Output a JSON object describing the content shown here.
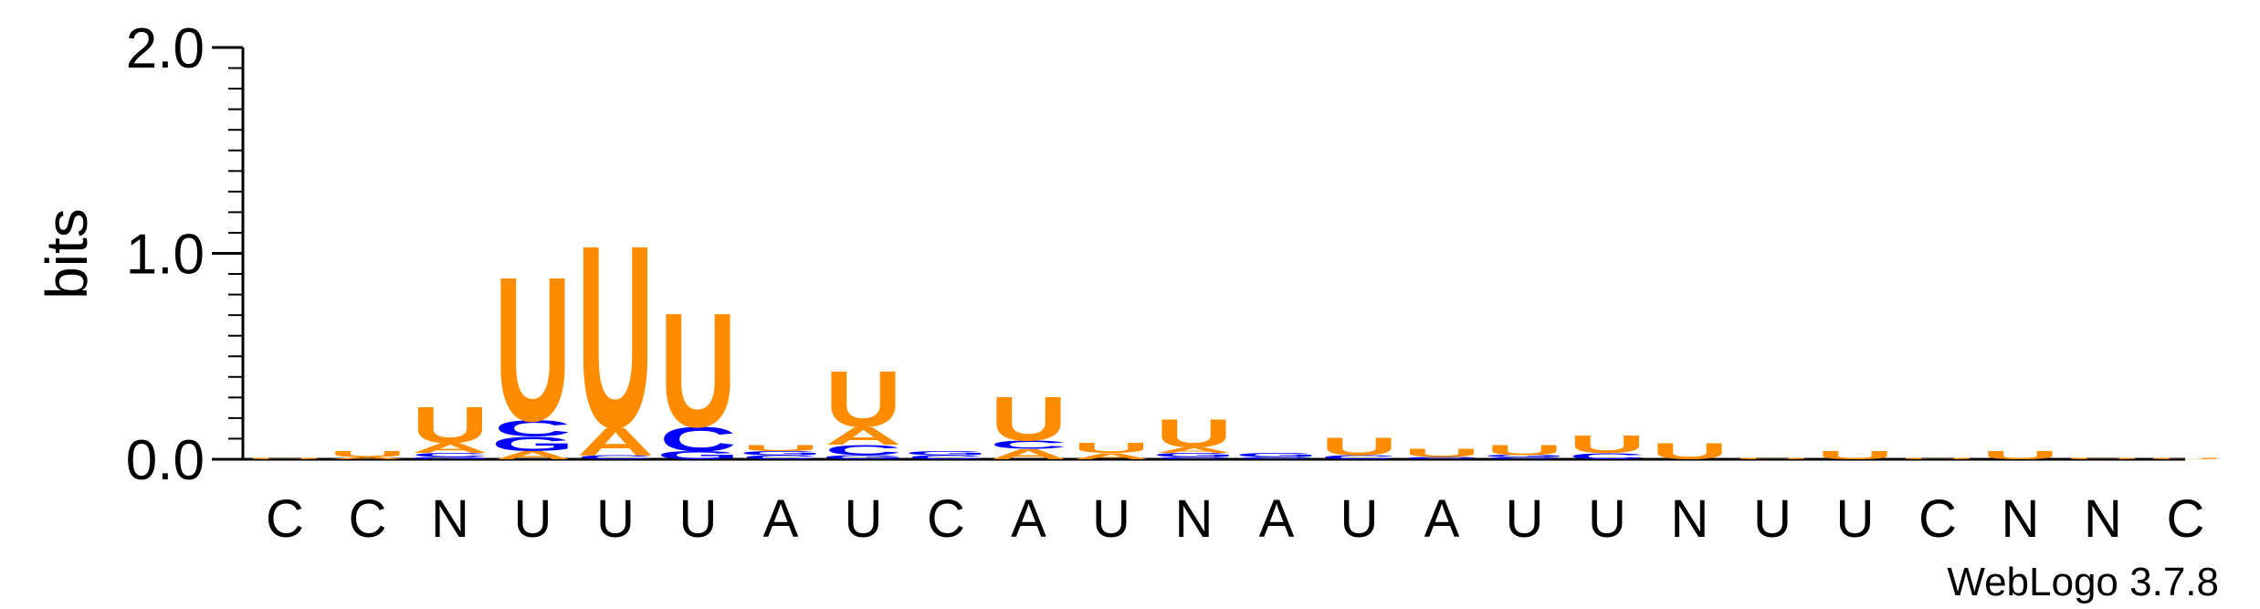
{
  "chart_data": {
    "type": "sequence-logo",
    "ylabel": "bits",
    "ylim": [
      0,
      2.0
    ],
    "yticks": [
      "0.0",
      "1.0",
      "2.0"
    ],
    "yticks_values": [
      0,
      1,
      2
    ],
    "xtick_labels": [
      "C",
      "C",
      "N",
      "U",
      "U",
      "U",
      "A",
      "U",
      "C",
      "A",
      "U",
      "N",
      "A",
      "U",
      "A",
      "U",
      "U",
      "N",
      "U",
      "U",
      "C",
      "N",
      "N",
      "C"
    ],
    "colors": {
      "U": "#ff8c00",
      "A": "#ff8c00",
      "C": "#0000ff",
      "G": "#0000ff"
    },
    "stacks": [
      [
        [
          "U",
          0.005
        ]
      ],
      [
        [
          "A",
          0.01
        ],
        [
          "U",
          0.03
        ]
      ],
      [
        [
          "G",
          0.01
        ],
        [
          "C",
          0.02
        ],
        [
          "A",
          0.05
        ],
        [
          "U",
          0.18
        ]
      ],
      [
        [
          "A",
          0.04
        ],
        [
          "G",
          0.07
        ],
        [
          "C",
          0.08
        ],
        [
          "U",
          0.72
        ]
      ],
      [
        [
          "C",
          0.02
        ],
        [
          "A",
          0.14
        ],
        [
          "U",
          0.91
        ]
      ],
      [
        [
          "G",
          0.04
        ],
        [
          "C",
          0.12
        ],
        [
          "U",
          0.57
        ]
      ],
      [
        [
          "C",
          0.02
        ],
        [
          "G",
          0.02
        ],
        [
          "U",
          0.03
        ]
      ],
      [
        [
          "G",
          0.02
        ],
        [
          "C",
          0.05
        ],
        [
          "A",
          0.09
        ],
        [
          "U",
          0.28
        ]
      ],
      [
        [
          "C",
          0.02
        ],
        [
          "G",
          0.02
        ]
      ],
      [
        [
          "A",
          0.05
        ],
        [
          "C",
          0.04
        ],
        [
          "U",
          0.22
        ]
      ],
      [
        [
          "A",
          0.03
        ],
        [
          "U",
          0.05
        ]
      ],
      [
        [
          "C",
          0.01
        ],
        [
          "G",
          0.02
        ],
        [
          "A",
          0.03
        ],
        [
          "U",
          0.14
        ]
      ],
      [
        [
          "C",
          0.01
        ],
        [
          "G",
          0.02
        ]
      ],
      [
        [
          "C",
          0.02
        ],
        [
          "U",
          0.09
        ]
      ],
      [
        [
          "C",
          0.01
        ],
        [
          "U",
          0.04
        ]
      ],
      [
        [
          "C",
          0.01
        ],
        [
          "G",
          0.01
        ],
        [
          "U",
          0.05
        ]
      ],
      [
        [
          "C",
          0.03
        ],
        [
          "U",
          0.09
        ]
      ],
      [
        [
          "U",
          0.08
        ]
      ],
      [
        [
          "U",
          0.005
        ]
      ],
      [
        [
          "U",
          0.04
        ]
      ],
      [
        [
          "U",
          0.005
        ]
      ],
      [
        [
          "U",
          0.04
        ]
      ],
      [
        [
          "U",
          0.005
        ]
      ],
      [
        [
          "U",
          0.005
        ]
      ]
    ]
  },
  "footer": {
    "version": "WebLogo 3.7.8"
  }
}
